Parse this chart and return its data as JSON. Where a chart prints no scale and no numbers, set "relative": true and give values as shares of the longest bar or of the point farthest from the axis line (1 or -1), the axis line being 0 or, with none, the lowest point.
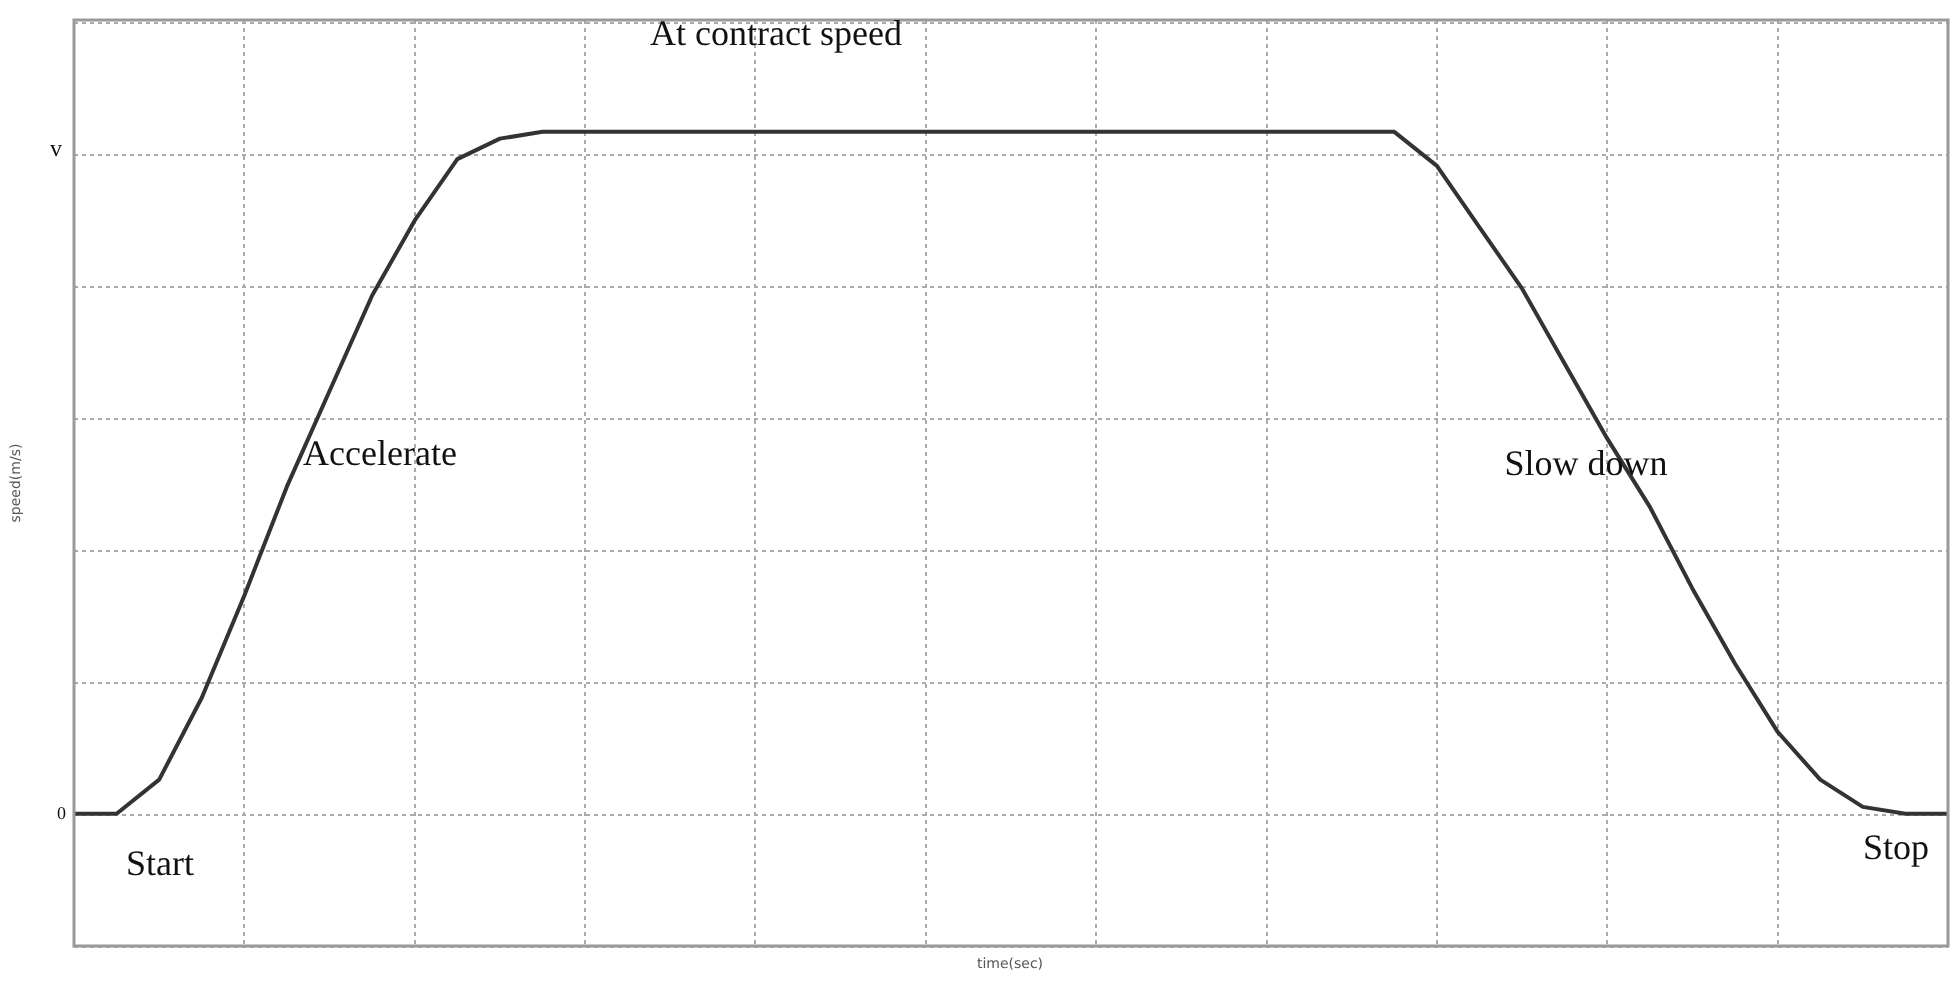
{
  "chart_data": {
    "type": "line",
    "relative": true,
    "ylabel": "speed(m/s)",
    "categories": [
      null,
      null,
      null,
      null,
      null,
      null,
      null,
      null,
      null,
      null,
      null,
      null,
      null,
      null,
      null,
      null,
      null,
      null,
      null,
      null,
      null,
      null,
      null,
      null,
      null,
      null,
      null,
      null,
      null,
      null,
      null,
      null,
      null,
      null,
      null,
      null,
      null,
      null,
      null,
      null,
      null,
      null,
      null,
      null,
      null
    ],
    "series": [
      {
        "color": "#333333",
        "values": [
          0,
          0,
          0.05,
          0.17,
          0.32,
          0.48,
          0.62,
          0.76,
          0.87,
          0.96,
          0.99,
          1,
          1,
          1,
          1,
          1,
          1,
          1,
          1,
          1,
          1,
          1,
          1,
          1,
          1,
          1,
          1,
          1,
          1,
          1,
          1,
          1,
          0.95,
          0.86,
          0.77,
          0.66,
          0.55,
          0.45,
          0.33,
          0.22,
          0.12,
          0.05,
          0.01,
          0,
          0
        ]
      }
    ],
    "grid": true,
    "legend": false,
    "marker": "none",
    "line_style": "solid",
    "annotations": [
      "v",
      "0",
      "At contract speed",
      "Accelerate",
      "Slow down",
      "Start",
      "Stop",
      "time(sec)"
    ]
  }
}
